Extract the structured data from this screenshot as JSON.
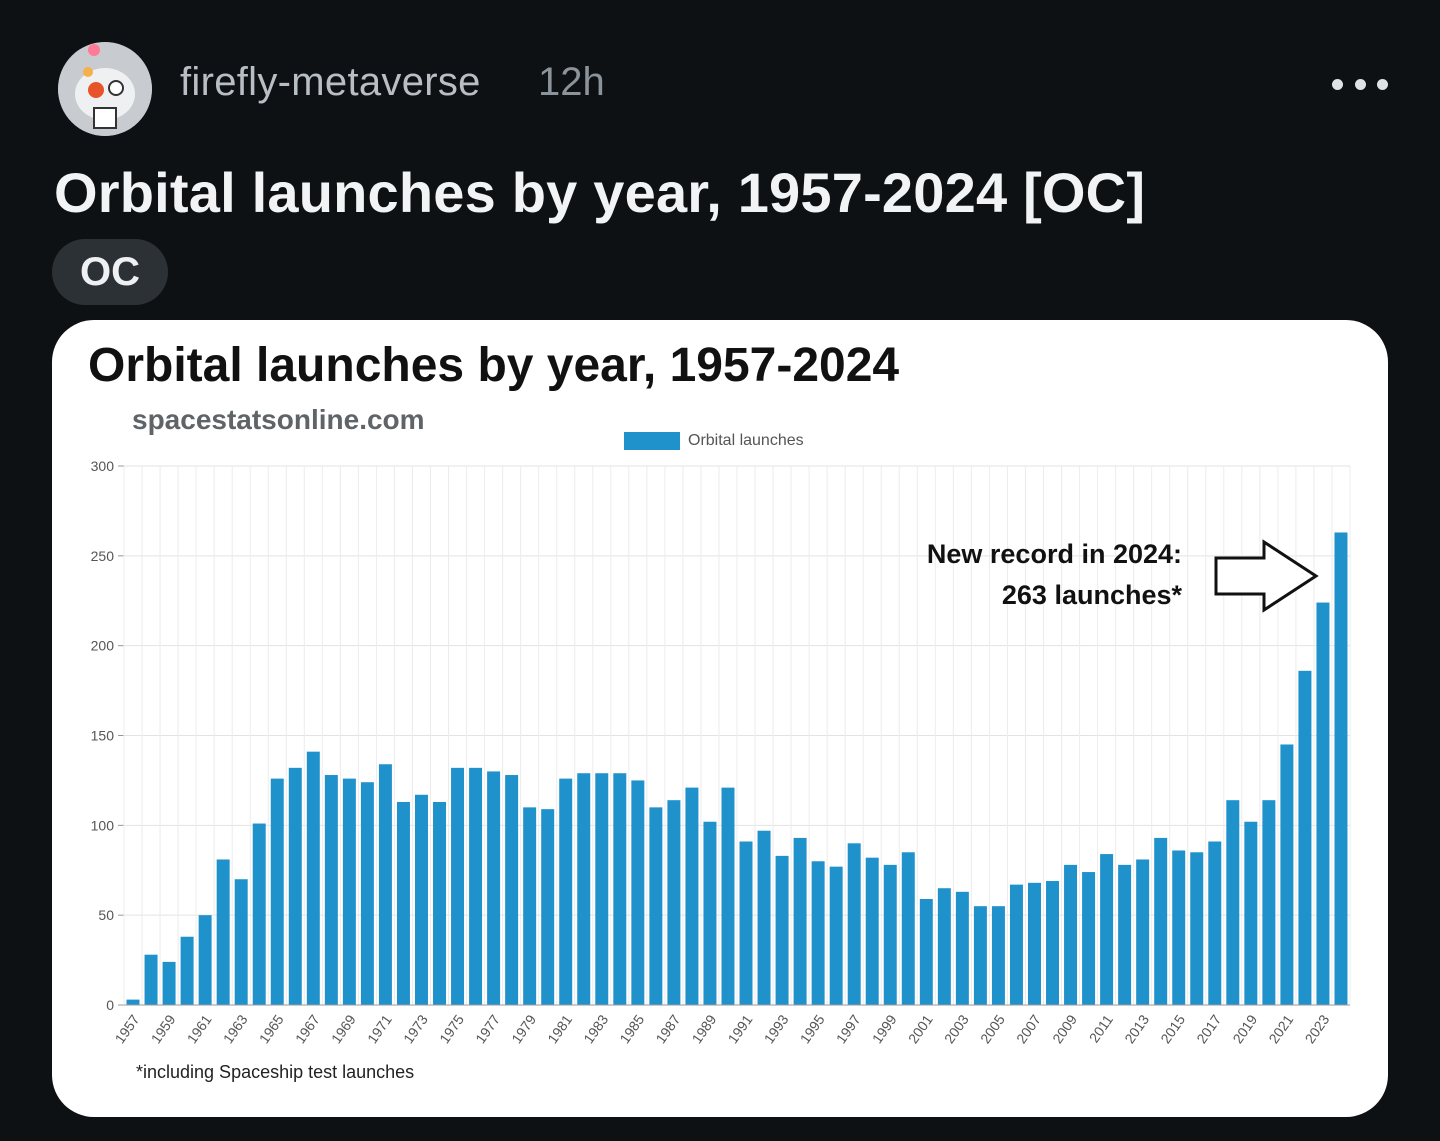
{
  "post": {
    "username": "firefly-metaverse",
    "timestamp": "12h",
    "title": "Orbital launches by year, 1957-2024 [OC]",
    "flair": "OC"
  },
  "icons": {
    "avatar": "snoo-avatar-icon",
    "more": "more-options-icon"
  },
  "chart_data": {
    "type": "bar",
    "title": "Orbital launches by year, 1957-2024",
    "subtitle": "spacestatsonline.com",
    "xlabel": "",
    "ylabel": "",
    "ylim": [
      0,
      300
    ],
    "yticks": [
      0,
      50,
      100,
      150,
      200,
      250,
      300
    ],
    "grid": true,
    "legend_position": "top-center",
    "bar_color": "#1f92cc",
    "categories": [
      "1957",
      "1958",
      "1959",
      "1960",
      "1961",
      "1962",
      "1963",
      "1964",
      "1965",
      "1966",
      "1967",
      "1968",
      "1969",
      "1970",
      "1971",
      "1972",
      "1973",
      "1974",
      "1975",
      "1976",
      "1977",
      "1978",
      "1979",
      "1980",
      "1981",
      "1982",
      "1983",
      "1984",
      "1985",
      "1986",
      "1987",
      "1988",
      "1989",
      "1990",
      "1991",
      "1992",
      "1993",
      "1994",
      "1995",
      "1996",
      "1997",
      "1998",
      "1999",
      "2000",
      "2001",
      "2002",
      "2003",
      "2004",
      "2005",
      "2006",
      "2007",
      "2008",
      "2009",
      "2010",
      "2011",
      "2012",
      "2013",
      "2014",
      "2015",
      "2016",
      "2017",
      "2018",
      "2019",
      "2020",
      "2021",
      "2022",
      "2023",
      "2024"
    ],
    "series": [
      {
        "name": "Orbital launches",
        "values": [
          3,
          28,
          24,
          38,
          50,
          81,
          70,
          101,
          126,
          132,
          141,
          128,
          126,
          124,
          134,
          113,
          117,
          113,
          132,
          132,
          130,
          128,
          110,
          109,
          126,
          129,
          129,
          129,
          125,
          110,
          114,
          121,
          102,
          121,
          91,
          97,
          83,
          93,
          80,
          77,
          90,
          82,
          78,
          85,
          59,
          65,
          63,
          55,
          55,
          67,
          68,
          69,
          78,
          74,
          84,
          78,
          81,
          93,
          86,
          85,
          91,
          114,
          102,
          114,
          145,
          186,
          224,
          263
        ]
      }
    ],
    "tick_labels_shown": [
      "1957",
      "1959",
      "1961",
      "1963",
      "1965",
      "1967",
      "1969",
      "1971",
      "1973",
      "1975",
      "1977",
      "1979",
      "1981",
      "1983",
      "1985",
      "1987",
      "1989",
      "1991",
      "1993",
      "1995",
      "1997",
      "1999",
      "2001",
      "2003",
      "2005",
      "2007",
      "2009",
      "2011",
      "2013",
      "2015",
      "2017",
      "2019",
      "2021",
      "2023"
    ],
    "annotation_line1": "New record in 2024:",
    "annotation_line2": "263 launches*",
    "footnote": "*including Spaceship test launches"
  }
}
